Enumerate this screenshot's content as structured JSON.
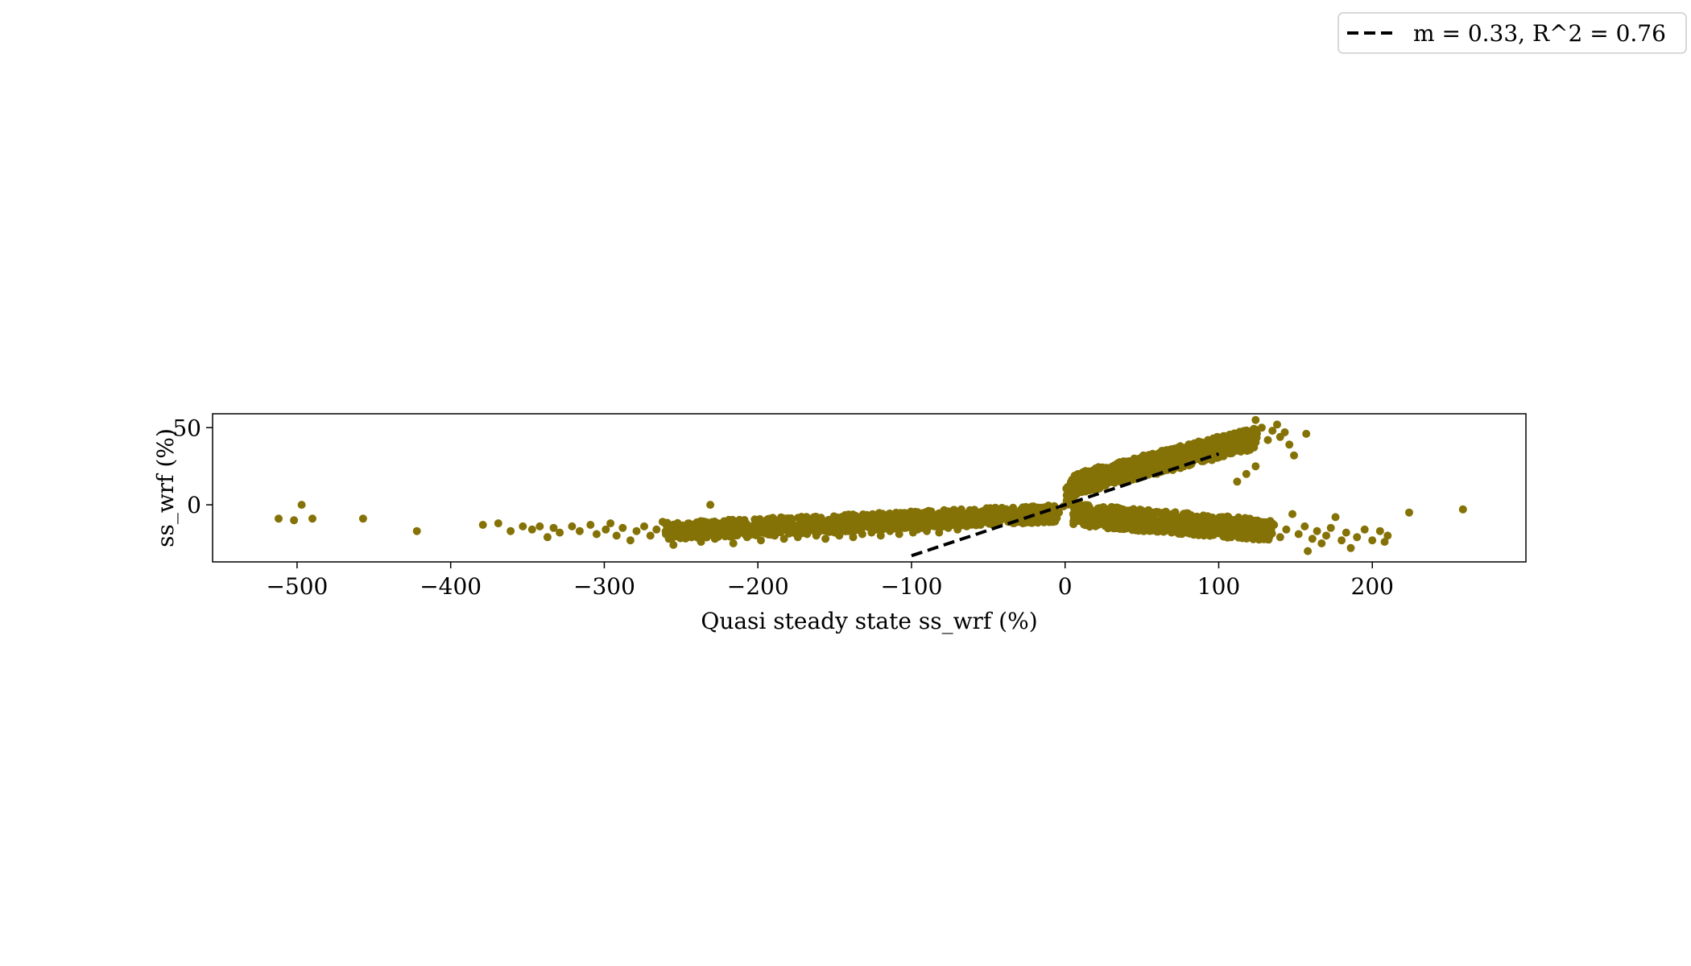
{
  "chart_data": {
    "type": "scatter",
    "xlabel": "Quasi steady state ss_wrf (%)",
    "ylabel": "ss_wrf (%)",
    "xlim": [
      -555,
      300
    ],
    "ylim": [
      -37,
      59
    ],
    "x_ticks": [
      -500,
      -400,
      -300,
      -200,
      -100,
      0,
      100,
      200
    ],
    "x_tick_labels": [
      "−500",
      "−400",
      "−300",
      "−200",
      "−100",
      "0",
      "100",
      "200"
    ],
    "y_ticks": [
      0,
      50
    ],
    "y_tick_labels": [
      "0",
      "50"
    ],
    "grid": false,
    "legend": {
      "placement": "top-right",
      "label": "m = 0.33, R^2 = 0.76"
    },
    "colors": {
      "points": "#857206",
      "fit_line": "#000000"
    },
    "fit_line": {
      "slope": 0.33,
      "x": [
        -100,
        100
      ],
      "y": [
        -33,
        33
      ],
      "style": "dashed"
    },
    "series": [
      {
        "points": [
          [
            -512,
            -9
          ],
          [
            -502,
            -10
          ],
          [
            -497,
            0
          ],
          [
            -490,
            -9
          ],
          [
            -457,
            -9
          ],
          [
            -422,
            -17
          ],
          [
            -379,
            -13
          ],
          [
            -369,
            -12
          ],
          [
            -361,
            -17
          ],
          [
            -353,
            -14
          ],
          [
            -347,
            -16
          ],
          [
            -342,
            -14
          ],
          [
            -337,
            -21
          ],
          [
            -333,
            -15
          ],
          [
            -329,
            -18
          ],
          [
            -321,
            -14
          ],
          [
            -316,
            -17
          ],
          [
            -309,
            -13
          ],
          [
            -305,
            -19
          ],
          [
            -299,
            -16
          ],
          [
            -296,
            -12
          ],
          [
            -292,
            -20
          ],
          [
            -288,
            -15
          ],
          [
            -283,
            -23
          ],
          [
            -279,
            -17
          ],
          [
            -274,
            -14
          ],
          [
            -270,
            -20
          ],
          [
            -266,
            -16
          ],
          [
            -262,
            -11
          ],
          [
            -258,
            -22
          ],
          [
            -255,
            -26
          ],
          [
            -252,
            -18
          ],
          [
            -249,
            -15
          ],
          [
            -246,
            -21
          ],
          [
            -243,
            -13
          ],
          [
            -240,
            -19
          ],
          [
            -237,
            -24
          ],
          [
            -234,
            -16
          ],
          [
            -231,
            0
          ],
          [
            -228,
            -22
          ],
          [
            -225,
            -17
          ],
          [
            -222,
            -13
          ],
          [
            -219,
            -20
          ],
          [
            -216,
            -25
          ],
          [
            -213,
            -15
          ],
          [
            -210,
            -18
          ],
          [
            -207,
            -21
          ],
          [
            -204,
            -14
          ],
          [
            -201,
            -19
          ],
          [
            -198,
            -23
          ],
          [
            -195,
            -16
          ],
          [
            -192,
            -12
          ],
          [
            -189,
            -20
          ],
          [
            -186,
            -17
          ],
          [
            -183,
            -22
          ],
          [
            -180,
            -14
          ],
          [
            -177,
            -18
          ],
          [
            -174,
            -21
          ],
          [
            -171,
            -15
          ],
          [
            -168,
            -19
          ],
          [
            -165,
            -13
          ],
          [
            -162,
            -20
          ],
          [
            -159,
            -16
          ],
          [
            -156,
            -22
          ],
          [
            -153,
            -14
          ],
          [
            -150,
            -18
          ],
          [
            -147,
            -20
          ],
          [
            -144,
            -13
          ],
          [
            -141,
            -17
          ],
          [
            -138,
            -21
          ],
          [
            -135,
            -15
          ],
          [
            -132,
            -19
          ],
          [
            -129,
            -12
          ],
          [
            -126,
            -18
          ],
          [
            -123,
            -16
          ],
          [
            -120,
            -20
          ],
          [
            -117,
            -14
          ],
          [
            -114,
            -17
          ],
          [
            -111,
            -11
          ],
          [
            -108,
            -19
          ],
          [
            -105,
            -15
          ],
          [
            -102,
            -13
          ],
          [
            -99,
            -18
          ],
          [
            -96,
            -16
          ],
          [
            -93,
            -12
          ],
          [
            -90,
            -17
          ],
          [
            -88,
            -5
          ],
          [
            -85,
            -14
          ],
          [
            -82,
            -18
          ],
          [
            -79,
            -11
          ],
          [
            -76,
            -15
          ],
          [
            -73,
            -13
          ],
          [
            -70,
            -16
          ],
          [
            -67,
            -10
          ],
          [
            -64,
            -14
          ],
          [
            -61,
            -12
          ],
          [
            -58,
            -9
          ],
          [
            -55,
            -13
          ],
          [
            -52,
            -11
          ],
          [
            -49,
            -8
          ],
          [
            -46,
            -12
          ],
          [
            -43,
            -10
          ],
          [
            -40,
            -7
          ],
          [
            -37,
            -11
          ],
          [
            -34,
            -9
          ],
          [
            -31,
            -6
          ],
          [
            -28,
            -10
          ],
          [
            -25,
            -8
          ],
          [
            -22,
            -5
          ],
          [
            -19,
            -9
          ],
          [
            -16,
            -7
          ],
          [
            -13,
            -4
          ],
          [
            -10,
            -6
          ],
          [
            -7,
            -3
          ],
          [
            -4,
            -5
          ],
          [
            -1,
            -1
          ],
          [
            3,
            4
          ],
          [
            6,
            8
          ],
          [
            9,
            12
          ],
          [
            12,
            14
          ],
          [
            15,
            17
          ],
          [
            18,
            19
          ],
          [
            21,
            22
          ],
          [
            24,
            21
          ],
          [
            27,
            24
          ],
          [
            30,
            23
          ],
          [
            33,
            26
          ],
          [
            36,
            25
          ],
          [
            39,
            28
          ],
          [
            42,
            27
          ],
          [
            45,
            30
          ],
          [
            48,
            29
          ],
          [
            51,
            32
          ],
          [
            54,
            31
          ],
          [
            57,
            33
          ],
          [
            60,
            32
          ],
          [
            63,
            35
          ],
          [
            66,
            34
          ],
          [
            69,
            36
          ],
          [
            72,
            35
          ],
          [
            75,
            38
          ],
          [
            78,
            37
          ],
          [
            81,
            39
          ],
          [
            84,
            38
          ],
          [
            87,
            41
          ],
          [
            90,
            40
          ],
          [
            93,
            42
          ],
          [
            96,
            41
          ],
          [
            99,
            44
          ],
          [
            102,
            43
          ],
          [
            105,
            42
          ],
          [
            108,
            45
          ],
          [
            111,
            40
          ],
          [
            114,
            43
          ],
          [
            117,
            36
          ],
          [
            120,
            47
          ],
          [
            124,
            55
          ],
          [
            128,
            50
          ],
          [
            132,
            42
          ],
          [
            135,
            48
          ],
          [
            138,
            52
          ],
          [
            140,
            44
          ],
          [
            143,
            47
          ],
          [
            146,
            39
          ],
          [
            149,
            32
          ],
          [
            157,
            46
          ],
          [
            124,
            25
          ],
          [
            118,
            20
          ],
          [
            112,
            15
          ],
          [
            8,
            -4
          ],
          [
            12,
            -8
          ],
          [
            16,
            -10
          ],
          [
            20,
            -6
          ],
          [
            24,
            -12
          ],
          [
            28,
            -9
          ],
          [
            32,
            -14
          ],
          [
            36,
            -11
          ],
          [
            40,
            -7
          ],
          [
            44,
            -15
          ],
          [
            48,
            -10
          ],
          [
            52,
            -13
          ],
          [
            56,
            -8
          ],
          [
            60,
            -16
          ],
          [
            64,
            -11
          ],
          [
            68,
            -14
          ],
          [
            72,
            -9
          ],
          [
            76,
            -17
          ],
          [
            80,
            -12
          ],
          [
            84,
            -15
          ],
          [
            88,
            -10
          ],
          [
            92,
            -18
          ],
          [
            96,
            -13
          ],
          [
            100,
            -16
          ],
          [
            104,
            -11
          ],
          [
            108,
            -19
          ],
          [
            112,
            -14
          ],
          [
            116,
            -17
          ],
          [
            120,
            -12
          ],
          [
            124,
            -20
          ],
          [
            128,
            -15
          ],
          [
            132,
            -18
          ],
          [
            136,
            -13
          ],
          [
            140,
            -21
          ],
          [
            144,
            -16
          ],
          [
            148,
            -6
          ],
          [
            152,
            -19
          ],
          [
            156,
            -14
          ],
          [
            158,
            -30
          ],
          [
            161,
            -22
          ],
          [
            164,
            -17
          ],
          [
            167,
            -25
          ],
          [
            170,
            -20
          ],
          [
            173,
            -15
          ],
          [
            176,
            -8
          ],
          [
            180,
            -23
          ],
          [
            183,
            -18
          ],
          [
            186,
            -28
          ],
          [
            190,
            -21
          ],
          [
            195,
            -16
          ],
          [
            200,
            -23
          ],
          [
            205,
            -17
          ],
          [
            208,
            -24
          ],
          [
            210,
            -20
          ],
          [
            224,
            -5
          ],
          [
            259,
            -3
          ]
        ]
      }
    ]
  }
}
